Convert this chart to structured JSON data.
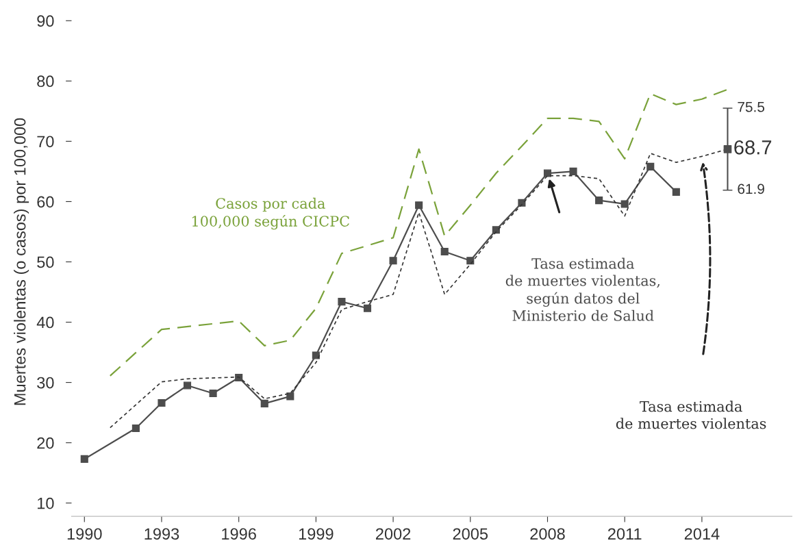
{
  "chart_data": {
    "type": "line",
    "ylabel": "Muertes violentas (o casos) por 100,000",
    "xlim": [
      1989.5,
      2017.5
    ],
    "ylim": [
      10,
      90
    ],
    "xticks": [
      1990,
      1993,
      1996,
      1999,
      2002,
      2005,
      2008,
      2011,
      2014
    ],
    "yticks": [
      10,
      20,
      30,
      40,
      50,
      60,
      70,
      80,
      90
    ],
    "grid": false,
    "legend": false,
    "series": [
      {
        "name": "Casos por cada\n100,000 según CICPC",
        "color": "#7aa23a",
        "line_style": "dashed",
        "marker": "none",
        "x": [
          1991,
          1993,
          1996,
          1997,
          1998,
          1999,
          2000,
          2002,
          2003,
          2004,
          2005,
          2006,
          2007,
          2008,
          2009,
          2010,
          2011,
          2012,
          2013,
          2014,
          2015
        ],
        "values": [
          31.1,
          38.8,
          40.2,
          36.1,
          37.0,
          42.3,
          51.4,
          54.0,
          68.7,
          54.3,
          59.4,
          64.7,
          69.2,
          73.8,
          73.8,
          73.3,
          67.1,
          77.9,
          76.1,
          77.0,
          78.6
        ]
      },
      {
        "name": "Tasa estimada\nde muertes violentas,\nsegún datos del\nMinisterio de Salud",
        "color": "#4d4d4d",
        "line_style": "solid",
        "marker": "square",
        "x": [
          1990,
          1992,
          1993,
          1994,
          1995,
          1996,
          1997,
          1998,
          1999,
          2000,
          2001,
          2002,
          2003,
          2004,
          2005,
          2006,
          2007,
          2008,
          2009,
          2010,
          2011,
          2012,
          2013
        ],
        "values": [
          17.3,
          22.4,
          26.6,
          29.5,
          28.2,
          30.8,
          26.5,
          27.7,
          34.5,
          43.4,
          42.3,
          50.2,
          59.4,
          51.7,
          50.2,
          55.3,
          59.8,
          64.7,
          65.0,
          60.2,
          59.6,
          65.8,
          61.6
        ]
      },
      {
        "name": "Tasa estimada\nde muertes violentas",
        "color": "#333333",
        "line_style": "dotted",
        "marker": "none",
        "x": [
          1991,
          1993,
          1994,
          1996,
          1997,
          1998,
          1999,
          2000,
          2001,
          2002,
          2003,
          2004,
          2005,
          2006,
          2007,
          2008,
          2009,
          2010,
          2011,
          2012,
          2013,
          2014,
          2015
        ],
        "values": [
          22.5,
          30.1,
          30.6,
          30.9,
          27.3,
          28.2,
          33.3,
          42.1,
          43.4,
          44.6,
          58.2,
          44.6,
          49.6,
          55.0,
          59.5,
          64.3,
          64.3,
          63.8,
          57.6,
          68.0,
          66.5,
          67.5,
          68.7
        ]
      },
      {
        "type": "scatter",
        "color": "#4d4d4d",
        "marker": "square",
        "x": [
          2015
        ],
        "values": [
          68.7
        ],
        "errors": [
          [
            61.9,
            75.5
          ]
        ],
        "value_labels": [
          "68.7"
        ]
      }
    ],
    "annotations": [
      {
        "text": "75.5",
        "x": 2015,
        "y": 75.5
      },
      {
        "text": "61.9",
        "x": 2015,
        "y": 61.9
      }
    ]
  }
}
